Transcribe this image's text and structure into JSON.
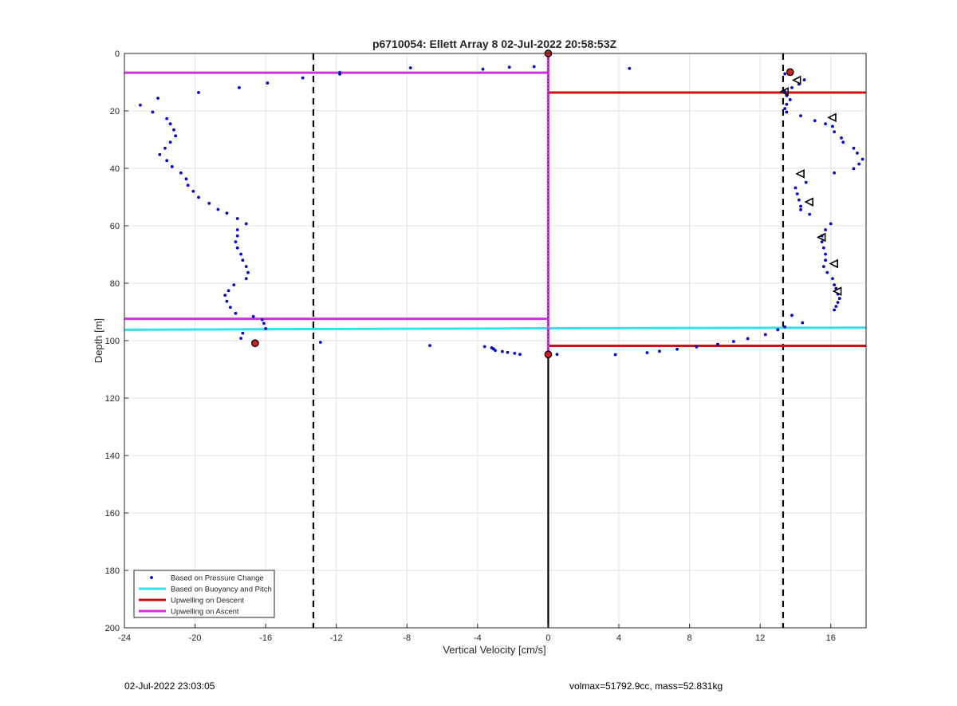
{
  "chart_data": {
    "type": "scatter",
    "title": "p6710054: Ellett Array 8 02-Jul-2022 20:58:53Z",
    "xlabel": "Vertical Velocity [cm/s]",
    "ylabel": "Depth [m]",
    "xlim": [
      -24,
      18
    ],
    "ylim": [
      0,
      200
    ],
    "y_reversed": true,
    "grid": true,
    "x_ticks": [
      -24,
      -20,
      -16,
      -12,
      -8,
      -4,
      0,
      4,
      8,
      12,
      16
    ],
    "x_tick_labels": [
      "-24",
      "-20",
      "-16",
      "-12",
      "-8",
      "-4",
      "0",
      "4",
      "8",
      "12",
      "16"
    ],
    "y_ticks": [
      0,
      20,
      40,
      60,
      80,
      100,
      120,
      140,
      160,
      180,
      200
    ],
    "y_tick_labels": [
      "0",
      "20",
      "40",
      "60",
      "80",
      "100",
      "120",
      "140",
      "160",
      "180",
      "200"
    ],
    "legend_position": "bottom-left",
    "colors": {
      "pressure": "#0000cc",
      "buoyancy": "#33e0ee",
      "descent": "#cc1111",
      "ascent": "#cc33dd",
      "dashed": "#000000",
      "marker_fill": "#cc2222"
    },
    "series": [
      {
        "name": "Based on Pressure Change",
        "style": "dots",
        "points": [
          [
            -0.8,
            4.6
          ],
          [
            -2.2,
            4.8
          ],
          [
            -3.7,
            5.5
          ],
          [
            -7.8,
            5.0
          ],
          [
            -11.8,
            6.6
          ],
          [
            -11.8,
            7.2
          ],
          [
            -13.9,
            8.5
          ],
          [
            -15.9,
            10.3
          ],
          [
            -17.5,
            11.9
          ],
          [
            -19.8,
            13.6
          ],
          [
            -22.1,
            15.6
          ],
          [
            -23.1,
            18.0
          ],
          [
            -22.4,
            20.4
          ],
          [
            -21.6,
            22.7
          ],
          [
            -21.4,
            24.5
          ],
          [
            -21.2,
            26.6
          ],
          [
            -21.1,
            28.7
          ],
          [
            -21.4,
            30.9
          ],
          [
            -21.7,
            33.0
          ],
          [
            -22.0,
            35.2
          ],
          [
            -21.6,
            37.3
          ],
          [
            -21.3,
            39.4
          ],
          [
            -20.8,
            41.6
          ],
          [
            -20.5,
            43.7
          ],
          [
            -20.4,
            45.9
          ],
          [
            -20.1,
            48.0
          ],
          [
            -19.8,
            50.1
          ],
          [
            -19.2,
            52.2
          ],
          [
            -18.7,
            54.3
          ],
          [
            -18.2,
            55.6
          ],
          [
            -17.6,
            57.5
          ],
          [
            -17.1,
            59.3
          ],
          [
            -17.6,
            61.4
          ],
          [
            -17.6,
            63.5
          ],
          [
            -17.7,
            65.6
          ],
          [
            -17.6,
            67.7
          ],
          [
            -17.4,
            69.9
          ],
          [
            -17.3,
            72.0
          ],
          [
            -17.1,
            74.2
          ],
          [
            -17.0,
            76.3
          ],
          [
            -17.1,
            78.4
          ],
          [
            -17.8,
            80.6
          ],
          [
            -18.1,
            82.6
          ],
          [
            -18.3,
            84.2
          ],
          [
            -18.2,
            86.3
          ],
          [
            -18.0,
            88.4
          ],
          [
            -17.7,
            90.5
          ],
          [
            -16.7,
            91.6
          ],
          [
            -16.2,
            92.7
          ],
          [
            -16.1,
            94.0
          ],
          [
            -16.0,
            95.8
          ],
          [
            -17.3,
            97.4
          ],
          [
            -17.4,
            99.2
          ],
          [
            -12.9,
            100.6
          ],
          [
            -6.7,
            101.7
          ],
          [
            -3.6,
            102.1
          ],
          [
            -3.2,
            102.5
          ],
          [
            -3.1,
            102.9
          ],
          [
            -3.0,
            103.4
          ],
          [
            -2.6,
            103.8
          ],
          [
            -2.3,
            104.1
          ],
          [
            -1.9,
            104.4
          ],
          [
            -1.6,
            104.8
          ],
          [
            0.5,
            104.8
          ],
          [
            3.8,
            104.9
          ],
          [
            5.6,
            104.2
          ],
          [
            6.3,
            103.7
          ],
          [
            7.3,
            103.0
          ],
          [
            8.4,
            102.2
          ],
          [
            9.6,
            101.3
          ],
          [
            10.5,
            100.3
          ],
          [
            11.3,
            99.3
          ],
          [
            12.3,
            97.9
          ],
          [
            13.0,
            96.2
          ],
          [
            13.4,
            95.2
          ],
          [
            14.4,
            93.8
          ],
          [
            13.8,
            91.2
          ],
          [
            16.2,
            89.3
          ],
          [
            16.3,
            88.1
          ],
          [
            16.4,
            86.7
          ],
          [
            16.5,
            85.3
          ],
          [
            16.4,
            83.8
          ],
          [
            16.3,
            81.8
          ],
          [
            16.2,
            80.6
          ],
          [
            16.1,
            78.4
          ],
          [
            15.8,
            76.3
          ],
          [
            15.6,
            74.2
          ],
          [
            15.7,
            72.0
          ],
          [
            15.7,
            69.9
          ],
          [
            15.6,
            67.7
          ],
          [
            15.5,
            65.6
          ],
          [
            15.5,
            63.5
          ],
          [
            15.7,
            61.4
          ],
          [
            16.0,
            59.3
          ],
          [
            14.8,
            56.0
          ],
          [
            14.3,
            54.4
          ],
          [
            14.3,
            53.2
          ],
          [
            14.2,
            51.0
          ],
          [
            14.1,
            48.9
          ],
          [
            14.0,
            46.8
          ],
          [
            14.6,
            44.9
          ],
          [
            16.2,
            41.6
          ],
          [
            17.3,
            40.1
          ],
          [
            17.6,
            38.5
          ],
          [
            17.8,
            36.8
          ],
          [
            17.5,
            34.7
          ],
          [
            17.3,
            33.0
          ],
          [
            16.7,
            30.9
          ],
          [
            16.6,
            29.4
          ],
          [
            16.2,
            27.3
          ],
          [
            16.1,
            25.4
          ],
          [
            15.7,
            24.5
          ],
          [
            15.1,
            23.4
          ],
          [
            14.3,
            21.7
          ],
          [
            13.5,
            20.4
          ],
          [
            13.4,
            19.2
          ],
          [
            13.5,
            17.7
          ],
          [
            13.7,
            16.1
          ],
          [
            13.5,
            14.7
          ],
          [
            13.4,
            13.3
          ],
          [
            13.8,
            11.9
          ],
          [
            14.2,
            10.7
          ],
          [
            14.5,
            9.2
          ],
          [
            13.4,
            7.1
          ],
          [
            13.6,
            5.9
          ],
          [
            4.6,
            5.2
          ]
        ]
      },
      {
        "name": "Based on Buoyancy and Pitch",
        "style": "line",
        "segments": [
          [
            [
              -24,
              96.2
            ],
            [
              0,
              95.7
            ]
          ],
          [
            [
              0,
              95.7
            ],
            [
              18,
              95.5
            ]
          ]
        ]
      },
      {
        "name": "Upwelling on Descent",
        "style": "line",
        "segments": [
          [
            [
              0,
              13.6
            ],
            [
              18,
              13.6
            ]
          ],
          [
            [
              0,
              101.8
            ],
            [
              18,
              101.8
            ]
          ]
        ]
      },
      {
        "name": "Upwelling on Ascent",
        "style": "line",
        "segments": [
          [
            [
              -24,
              6.7
            ],
            [
              0,
              6.7
            ]
          ],
          [
            [
              -24,
              92.4
            ],
            [
              0,
              92.4
            ]
          ]
        ]
      }
    ],
    "dashed_lines_x": [
      -13.3,
      13.3
    ],
    "center_line_x": 0,
    "ascent_marker_stack": {
      "x": 0,
      "y_from": 0,
      "y_to": 104.8
    },
    "filled_markers": [
      [
        0,
        0
      ],
      [
        0,
        104.8
      ],
      [
        -16.6,
        100.9
      ],
      [
        13.7,
        6.5
      ]
    ],
    "triangle_markers": [
      [
        16.1,
        22.3
      ],
      [
        14.3,
        41.9
      ],
      [
        14.8,
        51.7
      ],
      [
        15.5,
        64.0
      ],
      [
        16.2,
        73.2
      ],
      [
        16.4,
        82.8
      ],
      [
        14.1,
        9.3
      ],
      [
        13.4,
        13.3
      ]
    ]
  },
  "footer": {
    "left": "02-Jul-2022 23:03:05",
    "right": "volmax=51792.9cc, mass=52.831kg"
  }
}
